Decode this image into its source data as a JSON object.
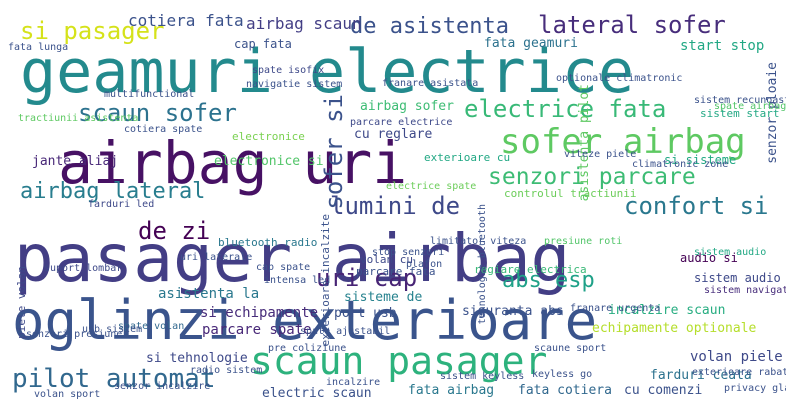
{
  "words": [
    {
      "text": "geamuri electrice",
      "color": "#238a8d"
    },
    {
      "text": "airbag uri",
      "color": "#471164"
    },
    {
      "text": "pasager airbag",
      "color": "#433e85"
    },
    {
      "text": "oglinzi exterioare",
      "color": "#3a548c"
    },
    {
      "text": "scaun pasager",
      "color": "#2db27d"
    },
    {
      "text": "sofer airbag",
      "color": "#5ec962"
    },
    {
      "text": "lateral sofer",
      "color": "#472d7b"
    },
    {
      "text": "de asistenta",
      "color": "#3b528b"
    },
    {
      "text": "electrice fata",
      "color": "#38b977"
    },
    {
      "text": "si pasager",
      "color": "#d5e21a"
    },
    {
      "text": "scaun sofer",
      "color": "#2c728e"
    },
    {
      "text": "senzori parcare",
      "color": "#3dbc74"
    },
    {
      "text": "airbag lateral",
      "color": "#287d8e"
    },
    {
      "text": "lumini de",
      "color": "#3e4989"
    },
    {
      "text": "confort si",
      "color": "#2a788e"
    },
    {
      "text": "de zi",
      "color": "#440154"
    },
    {
      "text": "uri cap",
      "color": "#482475"
    },
    {
      "text": "abs esp",
      "color": "#1fa188"
    },
    {
      "text": "pilot automat",
      "color": "#31688e"
    },
    {
      "text": "sofer si",
      "color": "#3b528b"
    },
    {
      "text": "cotiera fata",
      "color": "#3b528b"
    },
    {
      "text": "airbag scaun",
      "color": "#433e85"
    },
    {
      "text": "cap fata",
      "color": "#3b528b"
    },
    {
      "text": "fata geamuri",
      "color": "#2c728e"
    },
    {
      "text": "start stop",
      "color": "#22a884"
    },
    {
      "text": "airbag sofer",
      "color": "#3dbc74"
    },
    {
      "text": "jante aliaj",
      "color": "#482878"
    },
    {
      "text": "electronice si",
      "color": "#52c569"
    },
    {
      "text": "cu reglare",
      "color": "#3e4989"
    },
    {
      "text": "asistenta la",
      "color": "#2a788e"
    },
    {
      "text": "si echipamente",
      "color": "#472c7a"
    },
    {
      "text": "parcare spate",
      "color": "#482878"
    },
    {
      "text": "si tehnologie",
      "color": "#3e4989"
    },
    {
      "text": "sisteme de",
      "color": "#26828e"
    },
    {
      "text": "port usb",
      "color": "#3b528b"
    },
    {
      "text": "siguranta abs",
      "color": "#3b528b"
    },
    {
      "text": "echipamente optionale",
      "color": "#b5de2b"
    },
    {
      "text": "incalzire scaun",
      "color": "#27ad81"
    },
    {
      "text": "sistem audio",
      "color": "#3e4989"
    },
    {
      "text": "audio si",
      "color": "#440154"
    },
    {
      "text": "volan piele",
      "color": "#3e4989"
    },
    {
      "text": "farduri ceata",
      "color": "#2c728e"
    },
    {
      "text": "cu comenzi",
      "color": "#3b528b"
    },
    {
      "text": "electric scaun",
      "color": "#3b528b"
    },
    {
      "text": "fata airbag",
      "color": "#2a788e"
    },
    {
      "text": "fata cotiera",
      "color": "#31688e"
    },
    {
      "text": "si sisteme",
      "color": "#22a884"
    },
    {
      "text": "controlul tractiunii",
      "color": "#6ccd5a"
    },
    {
      "text": "sistem start",
      "color": "#22a884"
    },
    {
      "text": "bluetooth radio",
      "color": "#2a788e"
    },
    {
      "text": "regiare electrica",
      "color": "#38b977"
    },
    {
      "text": "parcare fata",
      "color": "#3b528b"
    },
    {
      "text": "volan cu",
      "color": "#3e4989"
    },
    {
      "text": "exterioare cu",
      "color": "#22a884"
    },
    {
      "text": "exterioare incalzite",
      "color": "#3b528b"
    },
    {
      "text": "asistenta pilot",
      "color": "#5ec962"
    },
    {
      "text": "senzor ploaie",
      "color": "#3b528b"
    },
    {
      "text": "piele volan",
      "color": "#3e4989"
    },
    {
      "text": "sistem navigatie",
      "color": "#472d7b"
    },
    {
      "text": "electronice",
      "color": "#7ad151"
    },
    {
      "text": "fata lunga",
      "color": "#3b528b"
    },
    {
      "text": "pre coliziune",
      "color": "#3b528b"
    },
    {
      "text": "spate volan",
      "color": "#31688e"
    },
    {
      "text": "sistem keyless",
      "color": "#3b528b"
    },
    {
      "text": "uri laterale",
      "color": "#3b528b"
    },
    {
      "text": "electrice spate",
      "color": "#6ccd5a"
    },
    {
      "text": "farduri led",
      "color": "#3e4989"
    },
    {
      "text": "navigatie sistem",
      "color": "#3b528b"
    },
    {
      "text": "spate isofix",
      "color": "#3e4989"
    },
    {
      "text": "franare asistata",
      "color": "#3b528b"
    },
    {
      "text": "optionale climatronic",
      "color": "#3b528b"
    },
    {
      "text": "cotiera spate",
      "color": "#3b528b"
    },
    {
      "text": "multifunctional",
      "color": "#3b528b"
    },
    {
      "text": "tractiunii asistenta",
      "color": "#5ec962"
    },
    {
      "text": "parcare electrice",
      "color": "#3e4989"
    },
    {
      "text": "viteze piele",
      "color": "#3b528b"
    },
    {
      "text": "sistem recunoastere",
      "color": "#3b528b"
    },
    {
      "text": "spate airbag",
      "color": "#52c569"
    },
    {
      "text": "stop senzori",
      "color": "#3b528b"
    },
    {
      "text": "usb sistem",
      "color": "#3b528b"
    },
    {
      "text": "intensa led",
      "color": "#3b528b"
    },
    {
      "text": "cap spate",
      "color": "#3b528b"
    },
    {
      "text": "suport lombar",
      "color": "#3e4989"
    },
    {
      "text": "senzori presiune",
      "color": "#3b528b"
    },
    {
      "text": "plafon",
      "color": "#3b528b"
    },
    {
      "text": "limitator viteza",
      "color": "#3b528b"
    },
    {
      "text": "presiune roti",
      "color": "#52c569"
    },
    {
      "text": "franare urgenta",
      "color": "#3b528b"
    },
    {
      "text": "privacy glass",
      "color": "#3b528b"
    },
    {
      "text": "sistem audio",
      "color": "#22a884"
    },
    {
      "text": "tehnologie bluetooth",
      "color": "#3b528b"
    },
    {
      "text": "climatronic zone",
      "color": "#3b528b"
    },
    {
      "text": "incalzire",
      "color": "#3b528b"
    },
    {
      "text": "spate ajustabil",
      "color": "#3b528b"
    },
    {
      "text": "radio sistem",
      "color": "#3b528b"
    },
    {
      "text": "keyless go",
      "color": "#3b528b"
    },
    {
      "text": "exterioare rabatabile",
      "color": "#3b528b"
    },
    {
      "text": "volan sport",
      "color": "#3b528b"
    },
    {
      "text": "scaune sport",
      "color": "#3b528b"
    },
    {
      "text": "senzor incalzire",
      "color": "#3b528b"
    }
  ]
}
